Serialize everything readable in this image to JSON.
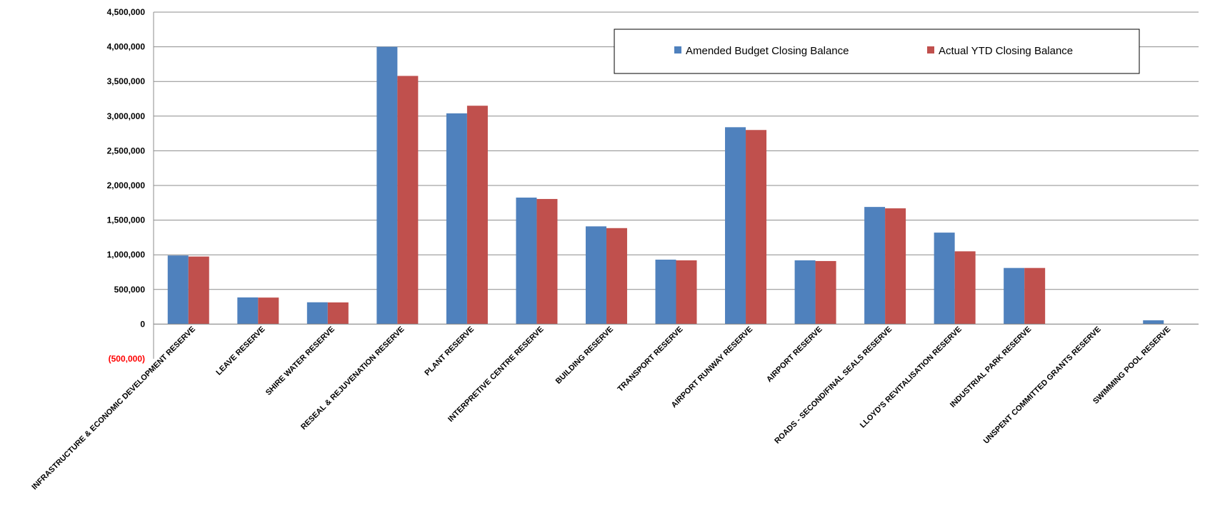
{
  "chart_data": {
    "type": "bar",
    "title": "",
    "xlabel": "",
    "ylabel": "",
    "ylim": [
      -500000,
      4500000
    ],
    "yticks": [
      -500000,
      0,
      500000,
      1000000,
      1500000,
      2000000,
      2500000,
      3000000,
      3500000,
      4000000,
      4500000
    ],
    "ytick_labels": [
      "(500,000)",
      "0",
      "500,000",
      "1,000,000",
      "1,500,000",
      "2,000,000",
      "2,500,000",
      "3,000,000",
      "3,500,000",
      "4,000,000",
      "4,500,000"
    ],
    "grid": true,
    "legend_position": "top-right",
    "categories": [
      "INFRASTRUCTURE & ECONOMIC DEVELOPMENT RESERVE",
      "LEAVE RESERVE",
      "SHIRE WATER RESERVE",
      "RESEAL & REJUVENATION RESERVE",
      "PLANT RESERVE",
      "INTERPRETIVE CENTRE RESERVE",
      "BUILDING RESERVE",
      "TRANSPORT RESERVE",
      "AIRPORT RUNWAY RESERVE",
      "AIRPORT RESERVE",
      "ROADS - SECOND/FINAL SEALS RESERVE",
      "LLOYD'S REVITALISATION RESERVE",
      "INDUSTRIAL PARK RESERVE",
      "UNSPENT COMMITTED GRANTS RESERVE",
      "SWIMMING POOL RESERVE"
    ],
    "series": [
      {
        "name": "Amended Budget Closing Balance",
        "color": "#4f81bd",
        "values": [
          990000,
          385000,
          315000,
          4000000,
          3040000,
          1825000,
          1410000,
          930000,
          2840000,
          920000,
          1690000,
          1320000,
          810000,
          0,
          55000
        ]
      },
      {
        "name": "Actual YTD Closing Balance",
        "color": "#c0504d",
        "values": [
          975000,
          383000,
          313000,
          3580000,
          3150000,
          1805000,
          1385000,
          920000,
          2800000,
          910000,
          1670000,
          1050000,
          810000,
          0,
          0
        ]
      }
    ]
  }
}
